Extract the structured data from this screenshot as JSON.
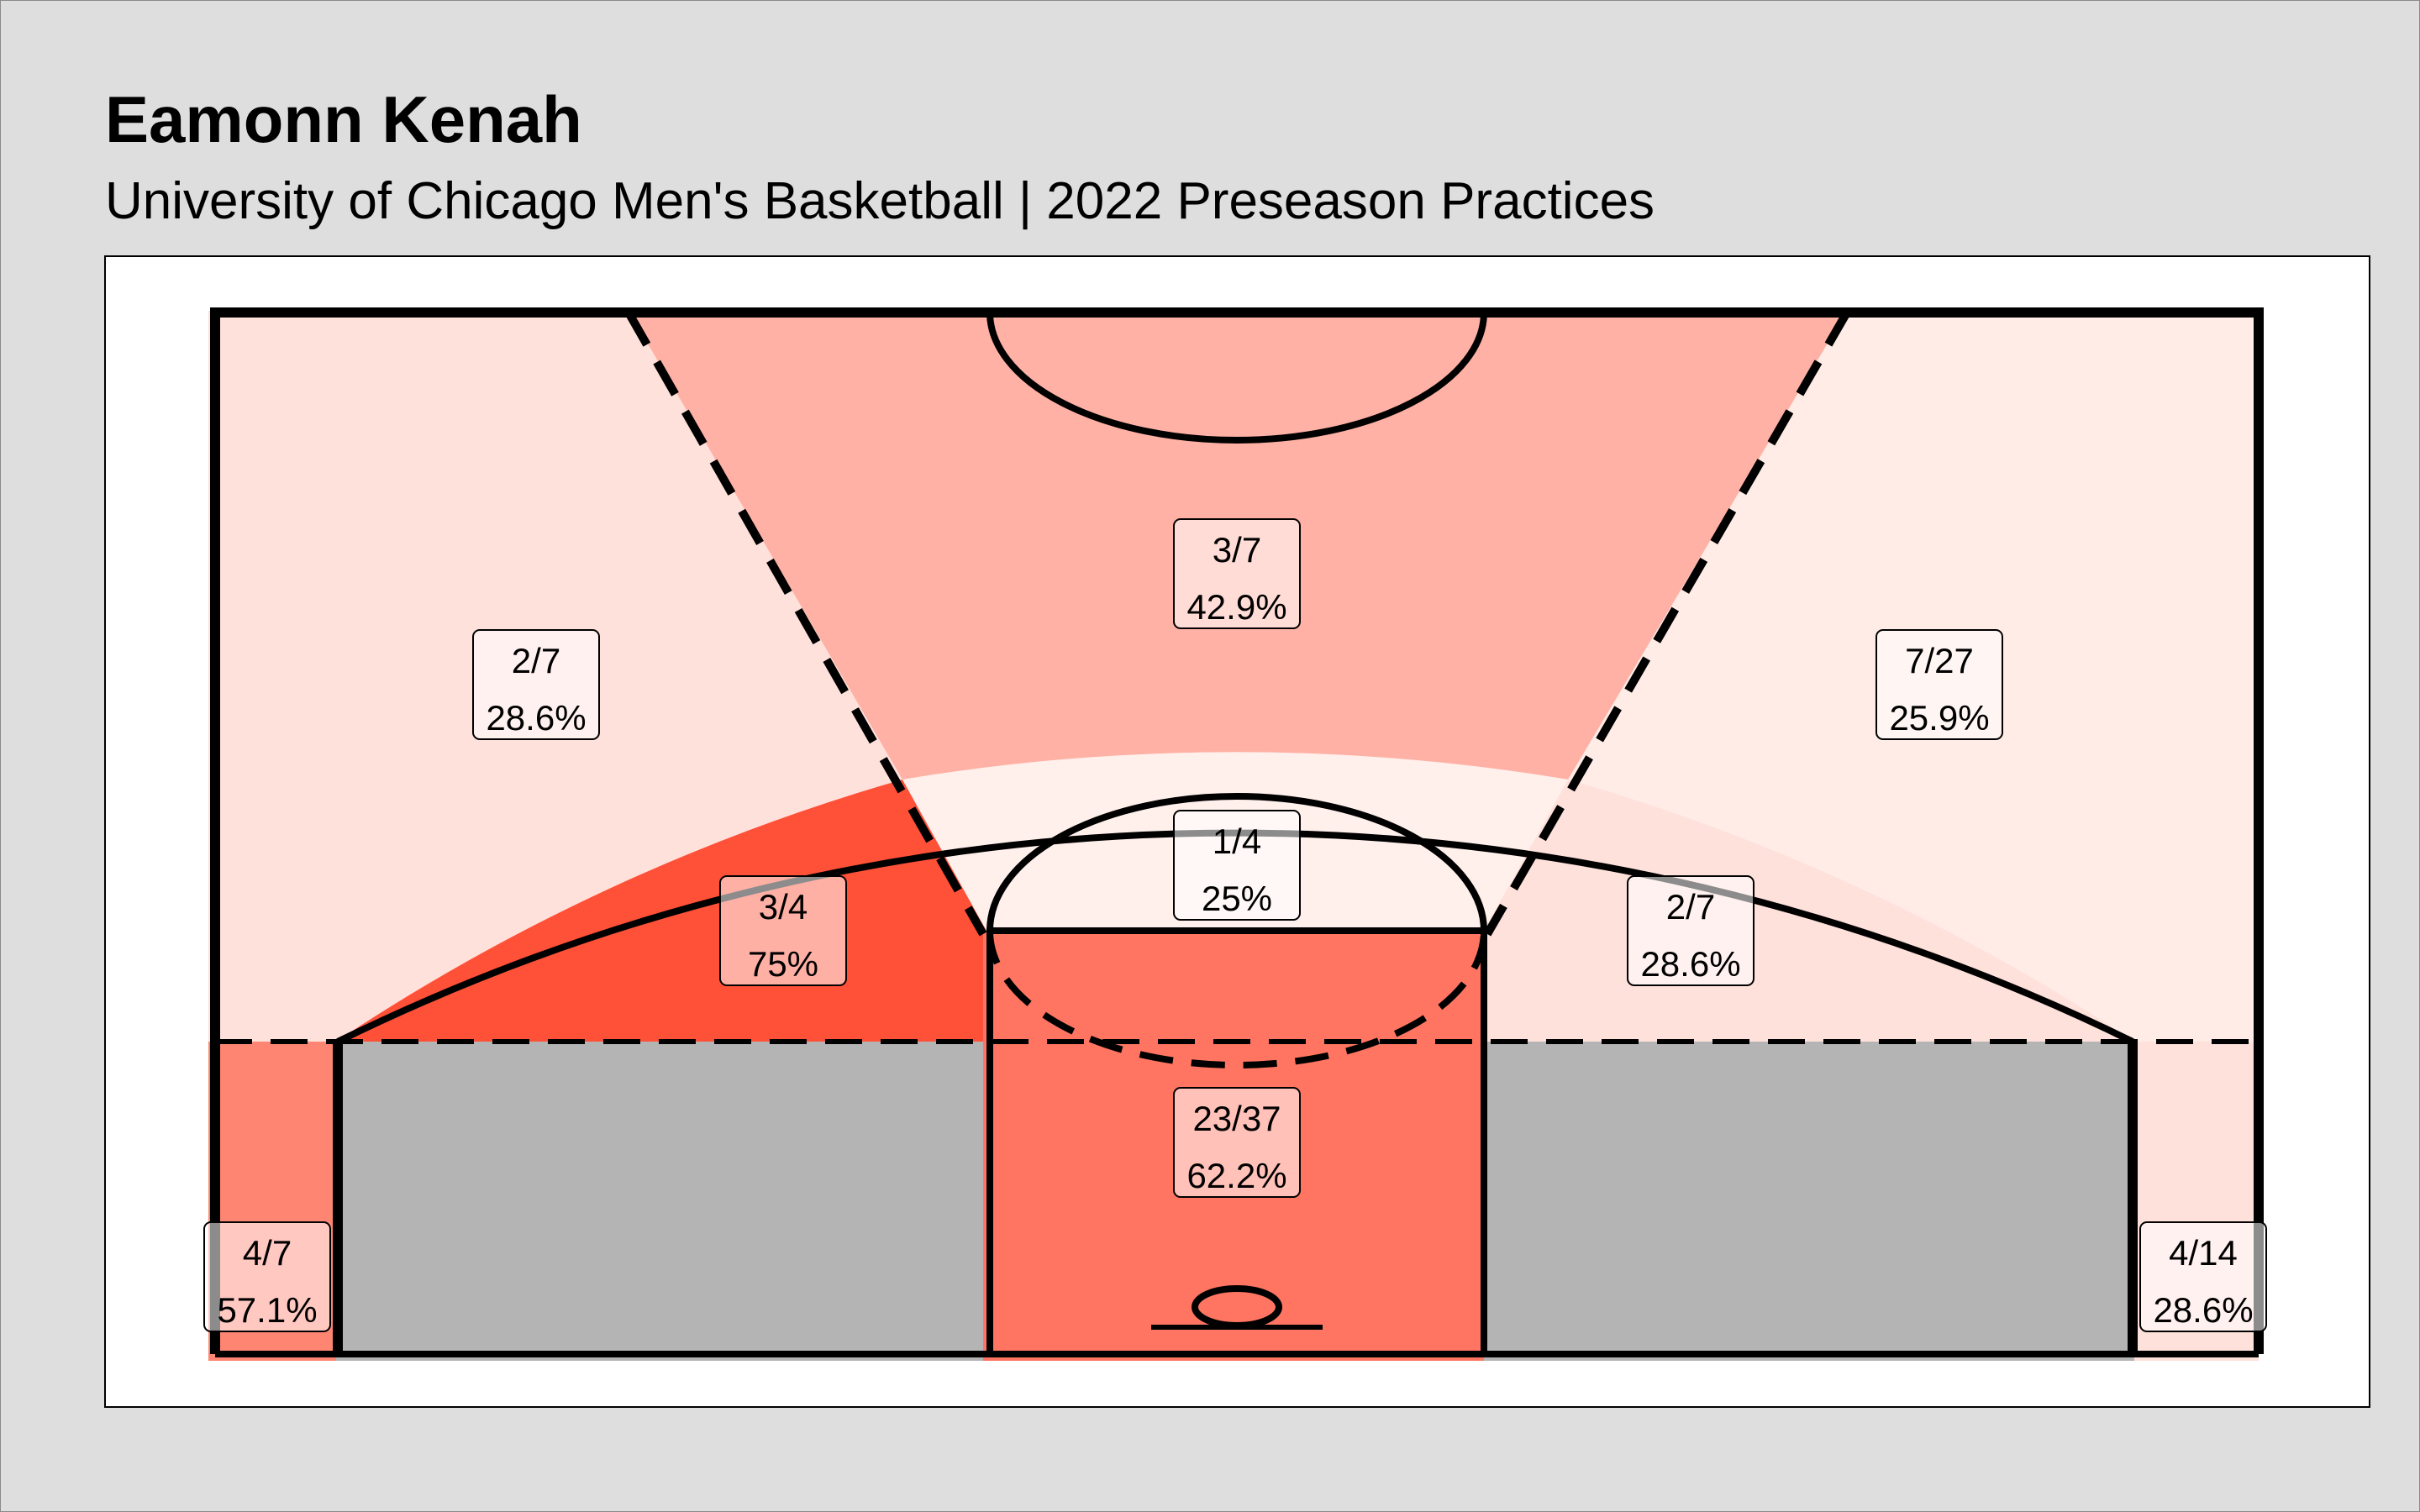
{
  "header": {
    "title": "Eamonn Kenah",
    "subtitle": "University of Chicago Men's Basketball | 2022 Preseason Practices"
  },
  "colors": {
    "background": "#dedede",
    "panel": "#ffffff",
    "court_lines": "#000000",
    "excluded_zone": "#b4b4b4",
    "scale_low": "#fff0ec",
    "scale_high": "#ff5038"
  },
  "chart_data": {
    "type": "heatmap",
    "title": "Eamonn Kenah",
    "subtitle": "University of Chicago Men's Basketball | 2022 Preseason Practices",
    "zones": [
      {
        "id": "top-of-key-three",
        "made": 3,
        "attempts": 7,
        "label": "3/7",
        "pct": 42.9,
        "pct_label": "42.9%"
      },
      {
        "id": "left-wing-three",
        "made": 2,
        "attempts": 7,
        "label": "2/7",
        "pct": 28.6,
        "pct_label": "28.6%"
      },
      {
        "id": "right-wing-three",
        "made": 7,
        "attempts": 27,
        "label": "7/27",
        "pct": 25.9,
        "pct_label": "25.9%"
      },
      {
        "id": "free-throw-area",
        "made": 1,
        "attempts": 4,
        "label": "1/4",
        "pct": 25.0,
        "pct_label": "25%"
      },
      {
        "id": "left-midrange",
        "made": 3,
        "attempts": 4,
        "label": "3/4",
        "pct": 75.0,
        "pct_label": "75%"
      },
      {
        "id": "right-midrange",
        "made": 2,
        "attempts": 7,
        "label": "2/7",
        "pct": 28.6,
        "pct_label": "28.6%"
      },
      {
        "id": "paint",
        "made": 23,
        "attempts": 37,
        "label": "23/37",
        "pct": 62.2,
        "pct_label": "62.2%"
      },
      {
        "id": "left-corner-three",
        "made": 4,
        "attempts": 7,
        "label": "4/7",
        "pct": 57.1,
        "pct_label": "57.1%"
      },
      {
        "id": "right-corner-three",
        "made": 4,
        "attempts": 14,
        "label": "4/14",
        "pct": 28.6,
        "pct_label": "28.6%"
      }
    ]
  }
}
